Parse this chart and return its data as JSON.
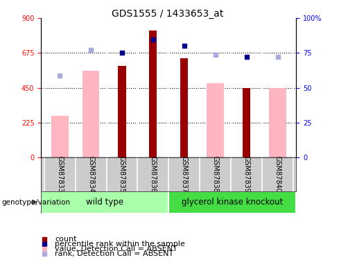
{
  "title": "GDS1555 / 1433653_at",
  "samples": [
    "GSM87833",
    "GSM87834",
    "GSM87835",
    "GSM87836",
    "GSM87837",
    "GSM87838",
    "GSM87839",
    "GSM87840"
  ],
  "red_bars": [
    null,
    null,
    590,
    820,
    640,
    null,
    450,
    null
  ],
  "pink_bars": [
    270,
    560,
    null,
    null,
    null,
    480,
    null,
    450
  ],
  "dark_blue_squares": [
    null,
    null,
    675,
    762,
    720,
    null,
    650,
    null
  ],
  "light_blue_squares": [
    530,
    695,
    null,
    null,
    null,
    665,
    null,
    650
  ],
  "ylim": [
    0,
    900
  ],
  "yticks_left": [
    0,
    225,
    450,
    675,
    900
  ],
  "yticks_right_labels": [
    "0",
    "25",
    "50",
    "75",
    "100%"
  ],
  "yticks_right_vals": [
    0,
    225,
    450,
    675,
    900
  ],
  "red_color": "#990000",
  "pink_color": "#FFB6C1",
  "dark_blue_color": "#00008B",
  "light_blue_color": "#AAAADD",
  "wt_color": "#AAFFAA",
  "gk_color": "#44DD44",
  "title_fontsize": 10,
  "tick_fontsize": 7,
  "legend_fontsize": 8,
  "sample_label_fontsize": 7
}
